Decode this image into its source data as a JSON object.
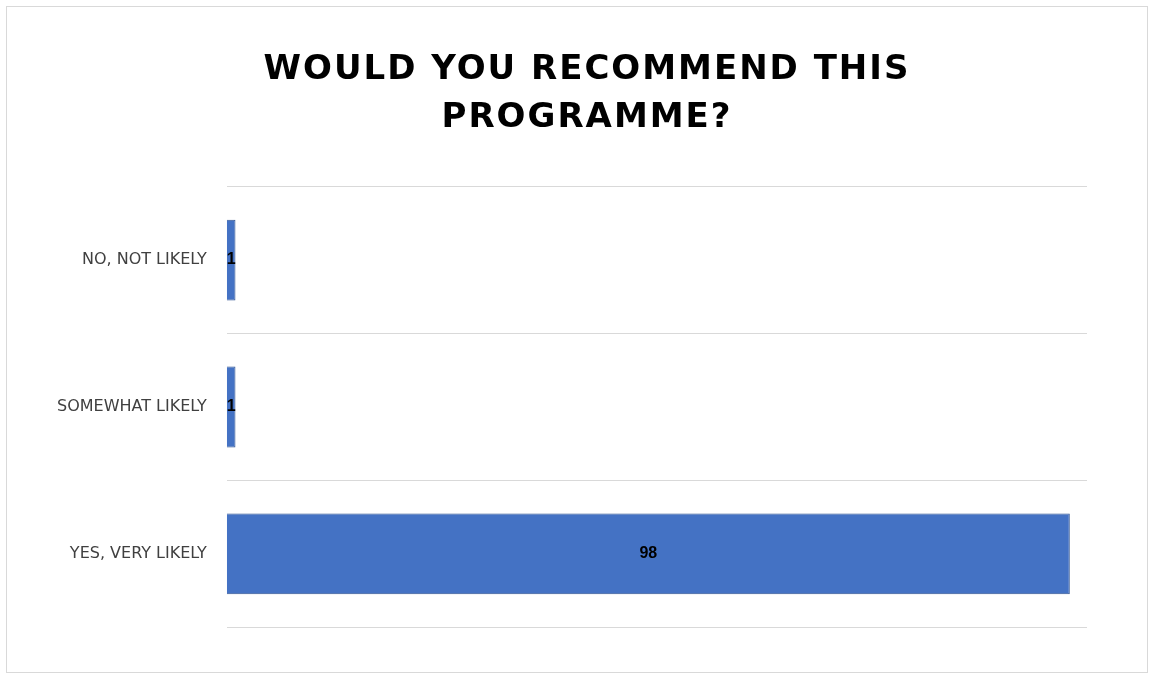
{
  "chart_data": {
    "type": "bar",
    "orientation": "horizontal",
    "title": "WOULD YOU RECOMMEND THIS PROGRAMME?",
    "categories": [
      "NO, NOT LIKELY",
      "SOMEWHAT LIKELY",
      "YES, VERY LIKELY"
    ],
    "values": [
      1,
      1,
      98
    ],
    "color": "#4472c4",
    "data_labels": true,
    "grid": "y",
    "legend": false
  }
}
